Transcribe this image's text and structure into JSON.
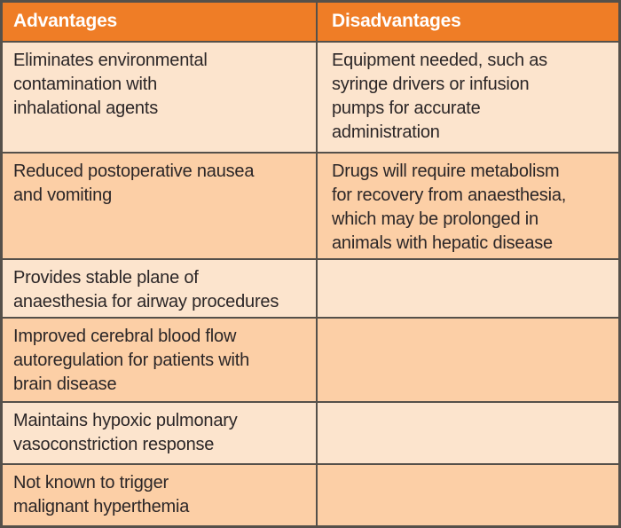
{
  "colors": {
    "header_bg": "#ef7d26",
    "header_text": "#ffffff",
    "row_light_bg": "#fce4cd",
    "row_dark_bg": "#fccfa6",
    "border": "#55504a",
    "body_text": "#2b2627"
  },
  "table": {
    "columns": [
      {
        "label": "Advantages"
      },
      {
        "label": "Disadvantages"
      }
    ],
    "rows": [
      {
        "advantage": "Eliminates environmental\ncontamination with\ninhalational agents",
        "disadvantage": "Equipment needed, such as\nsyringe drivers or infusion\npumps for accurate\nadministration",
        "shade": "light"
      },
      {
        "advantage": "Reduced postoperative nausea\nand vomiting",
        "disadvantage": "Drugs will require metabolism\nfor recovery from anaesthesia,\nwhich may be prolonged in\nanimals with hepatic disease",
        "shade": "dark"
      },
      {
        "advantage": "Provides stable plane of\nanaesthesia for airway procedures",
        "disadvantage": "",
        "shade": "light"
      },
      {
        "advantage": "Improved cerebral blood flow\nautoregulation for patients with\nbrain disease",
        "disadvantage": "",
        "shade": "dark"
      },
      {
        "advantage": "Maintains hypoxic pulmonary\nvasoconstriction response",
        "disadvantage": "",
        "shade": "light"
      },
      {
        "advantage": "Not known to trigger\nmalignant hyperthemia",
        "disadvantage": "",
        "shade": "dark"
      }
    ]
  }
}
